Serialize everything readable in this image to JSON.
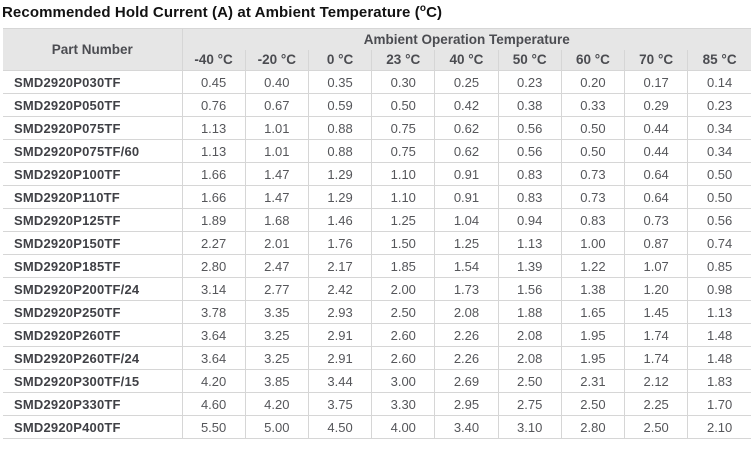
{
  "title": {
    "main": "Recommended Hold Current (A) at Ambient Temperature (",
    "degree": "o",
    "end": "C)"
  },
  "colors": {
    "header_background": "#e6e6e6",
    "header_text": "#4b4c51",
    "body_background": "#ffffff",
    "border": "#d6d6d6",
    "part_number_text": "#404146",
    "value_text": "#55565a",
    "title_text": "#121212"
  },
  "table": {
    "part_number_header": "Part Number",
    "group_header": "Ambient Operation Temperature",
    "temp_headers": [
      "-40 °C",
      "-20 °C",
      "0 °C",
      "23 °C",
      "40 °C",
      "50 °C",
      "60 °C",
      "70 °C",
      "85 °C"
    ],
    "rows": [
      {
        "part": "SMD2920P030TF",
        "values": [
          "0.45",
          "0.40",
          "0.35",
          "0.30",
          "0.25",
          "0.23",
          "0.20",
          "0.17",
          "0.14"
        ]
      },
      {
        "part": "SMD2920P050TF",
        "values": [
          "0.76",
          "0.67",
          "0.59",
          "0.50",
          "0.42",
          "0.38",
          "0.33",
          "0.29",
          "0.23"
        ]
      },
      {
        "part": "SMD2920P075TF",
        "values": [
          "1.13",
          "1.01",
          "0.88",
          "0.75",
          "0.62",
          "0.56",
          "0.50",
          "0.44",
          "0.34"
        ]
      },
      {
        "part": "SMD2920P075TF/60",
        "values": [
          "1.13",
          "1.01",
          "0.88",
          "0.75",
          "0.62",
          "0.56",
          "0.50",
          "0.44",
          "0.34"
        ]
      },
      {
        "part": "SMD2920P100TF",
        "values": [
          "1.66",
          "1.47",
          "1.29",
          "1.10",
          "0.91",
          "0.83",
          "0.73",
          "0.64",
          "0.50"
        ]
      },
      {
        "part": "SMD2920P110TF",
        "values": [
          "1.66",
          "1.47",
          "1.29",
          "1.10",
          "0.91",
          "0.83",
          "0.73",
          "0.64",
          "0.50"
        ]
      },
      {
        "part": "SMD2920P125TF",
        "values": [
          "1.89",
          "1.68",
          "1.46",
          "1.25",
          "1.04",
          "0.94",
          "0.83",
          "0.73",
          "0.56"
        ]
      },
      {
        "part": "SMD2920P150TF",
        "values": [
          "2.27",
          "2.01",
          "1.76",
          "1.50",
          "1.25",
          "1.13",
          "1.00",
          "0.87",
          "0.74"
        ]
      },
      {
        "part": "SMD2920P185TF",
        "values": [
          "2.80",
          "2.47",
          "2.17",
          "1.85",
          "1.54",
          "1.39",
          "1.22",
          "1.07",
          "0.85"
        ]
      },
      {
        "part": "SMD2920P200TF/24",
        "values": [
          "3.14",
          "2.77",
          "2.42",
          "2.00",
          "1.73",
          "1.56",
          "1.38",
          "1.20",
          "0.98"
        ]
      },
      {
        "part": "SMD2920P250TF",
        "values": [
          "3.78",
          "3.35",
          "2.93",
          "2.50",
          "2.08",
          "1.88",
          "1.65",
          "1.45",
          "1.13"
        ]
      },
      {
        "part": "SMD2920P260TF",
        "values": [
          "3.64",
          "3.25",
          "2.91",
          "2.60",
          "2.26",
          "2.08",
          "1.95",
          "1.74",
          "1.48"
        ]
      },
      {
        "part": "SMD2920P260TF/24",
        "values": [
          "3.64",
          "3.25",
          "2.91",
          "2.60",
          "2.26",
          "2.08",
          "1.95",
          "1.74",
          "1.48"
        ]
      },
      {
        "part": "SMD2920P300TF/15",
        "values": [
          "4.20",
          "3.85",
          "3.44",
          "3.00",
          "2.69",
          "2.50",
          "2.31",
          "2.12",
          "1.83"
        ]
      },
      {
        "part": "SMD2920P330TF",
        "values": [
          "4.60",
          "4.20",
          "3.75",
          "3.30",
          "2.95",
          "2.75",
          "2.50",
          "2.25",
          "1.70"
        ]
      },
      {
        "part": "SMD2920P400TF",
        "values": [
          "5.50",
          "5.00",
          "4.50",
          "4.00",
          "3.40",
          "3.10",
          "2.80",
          "2.50",
          "2.10"
        ]
      }
    ]
  }
}
